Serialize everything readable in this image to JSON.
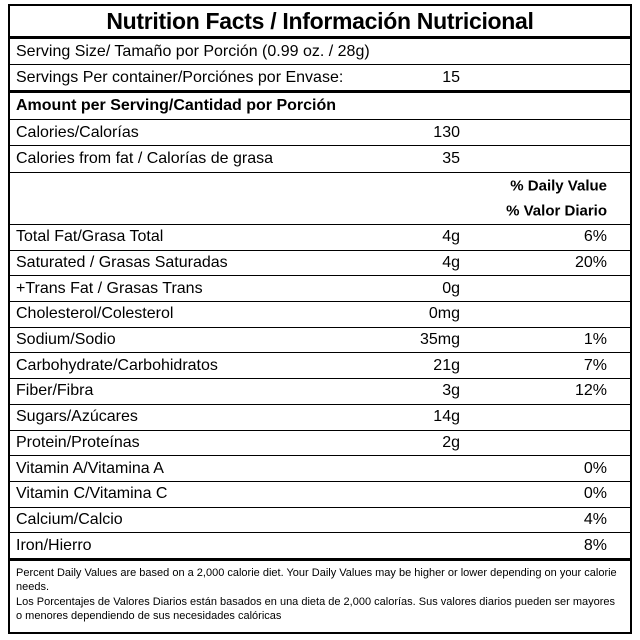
{
  "title": "Nutrition Facts / Información Nutricional",
  "serving_size": "Serving Size/ Tamaño por Porción  (0.99 oz. / 28g)",
  "servings_per_container": {
    "label": "Servings Per container/Porciónes por Envase:",
    "value": "15"
  },
  "amount_header": "Amount per Serving/Cantidad por Porción",
  "calories": {
    "label": "Calories/Calorías",
    "value": "130"
  },
  "calories_from_fat": {
    "label": "Calories from fat / Calorías de grasa",
    "value": "35"
  },
  "daily_value_header": [
    "% Daily Value",
    "% Valor Diario"
  ],
  "nutrients": [
    {
      "name": "Total Fat/Grasa Total",
      "amount": "4g",
      "dv": "6%"
    },
    {
      "name": "Saturated / Grasas Saturadas",
      "amount": "4g",
      "dv": "20%"
    },
    {
      "name": "+Trans Fat / Grasas Trans",
      "amount": "0g"
    },
    {
      "name": "Cholesterol/Colesterol",
      "amount": "0mg"
    },
    {
      "name": "Sodium/Sodio",
      "amount": "35mg",
      "dv": "1%"
    },
    {
      "name": "Carbohydrate/Carbohidratos",
      "amount": "21g",
      "dv": "7%"
    },
    {
      "name": "Fiber/Fibra",
      "amount": "3g",
      "dv": "12%"
    },
    {
      "name": "Sugars/Azúcares",
      "amount": "14g"
    },
    {
      "name": "Protein/Proteínas",
      "amount": "2g"
    },
    {
      "name": "Vitamin A/Vitamina A",
      "dv": "0%"
    },
    {
      "name": "Vitamin C/Vitamina C",
      "dv": "0%"
    },
    {
      "name": "Calcium/Calcio",
      "dv": "4%"
    },
    {
      "name": "Iron/Hierro",
      "dv": "8%"
    }
  ],
  "footnote": [
    "Percent Daily Values are based on a 2,000 calorie diet. Your Daily Values may be higher or lower depending on your calorie needs.",
    "Los Porcentajes de Valores Diarios están basados en una dieta de 2,000 calorías. Sus valores diarios pueden ser mayores o menores dependiendo de sus necesidades calóricas"
  ]
}
